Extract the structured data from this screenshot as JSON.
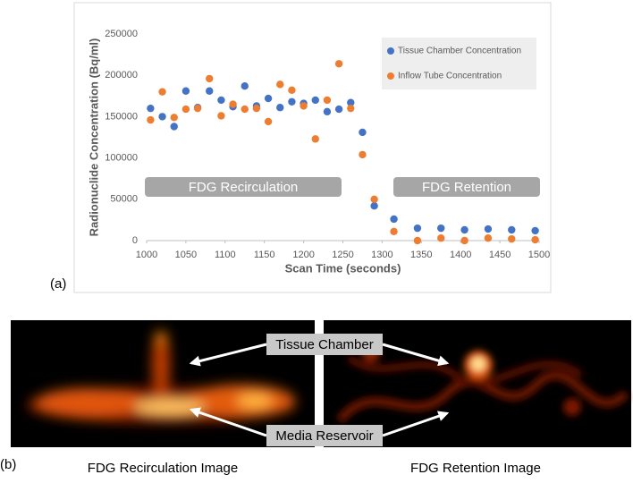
{
  "chart_data": {
    "type": "scatter",
    "xlabel": "Scan Time (seconds)",
    "ylabel": "Radionuclide Concentration (Bq/ml)",
    "x": [
      1005,
      1020,
      1035,
      1050,
      1065,
      1080,
      1095,
      1110,
      1125,
      1140,
      1155,
      1170,
      1185,
      1200,
      1215,
      1230,
      1245,
      1260,
      1275,
      1290,
      1315,
      1345,
      1375,
      1405,
      1435,
      1465,
      1495
    ],
    "series": [
      {
        "name": "Tissue Chamber Concentration",
        "color": "#4472c4",
        "values": [
          160000,
          150000,
          138000,
          181000,
          161000,
          181000,
          170000,
          162000,
          187000,
          163000,
          172000,
          161000,
          168000,
          166000,
          170000,
          156000,
          159000,
          167000,
          131000,
          42000,
          26000,
          15000,
          15000,
          13000,
          14000,
          13000,
          12000
        ]
      },
      {
        "name": "Inflow Tube Concentration",
        "color": "#ed7d31",
        "values": [
          146000,
          180000,
          149000,
          159000,
          160000,
          196000,
          151000,
          165000,
          159000,
          160000,
          144000,
          189000,
          182000,
          163000,
          123000,
          170000,
          214000,
          160000,
          104000,
          50000,
          11000,
          0,
          3000,
          0,
          3000,
          2000,
          1000
        ]
      }
    ],
    "xlim": [
      1000,
      1500
    ],
    "xticks": [
      1000,
      1050,
      1100,
      1150,
      1200,
      1250,
      1300,
      1350,
      1400,
      1450,
      1500
    ],
    "ylim": [
      0,
      250000
    ],
    "yticks": [
      0,
      50000,
      100000,
      150000,
      200000,
      250000
    ],
    "grid": false,
    "legend": "upper right",
    "annotations": [
      "FDG Recirculation",
      "FDG Retention"
    ]
  },
  "figure": {
    "panel_a": "(a)",
    "panel_b": "(b)",
    "image_labels": [
      "Tissue Chamber",
      "Media Reservoir"
    ],
    "captions": [
      "FDG Recirculation Image",
      "FDG Retention Image"
    ]
  }
}
